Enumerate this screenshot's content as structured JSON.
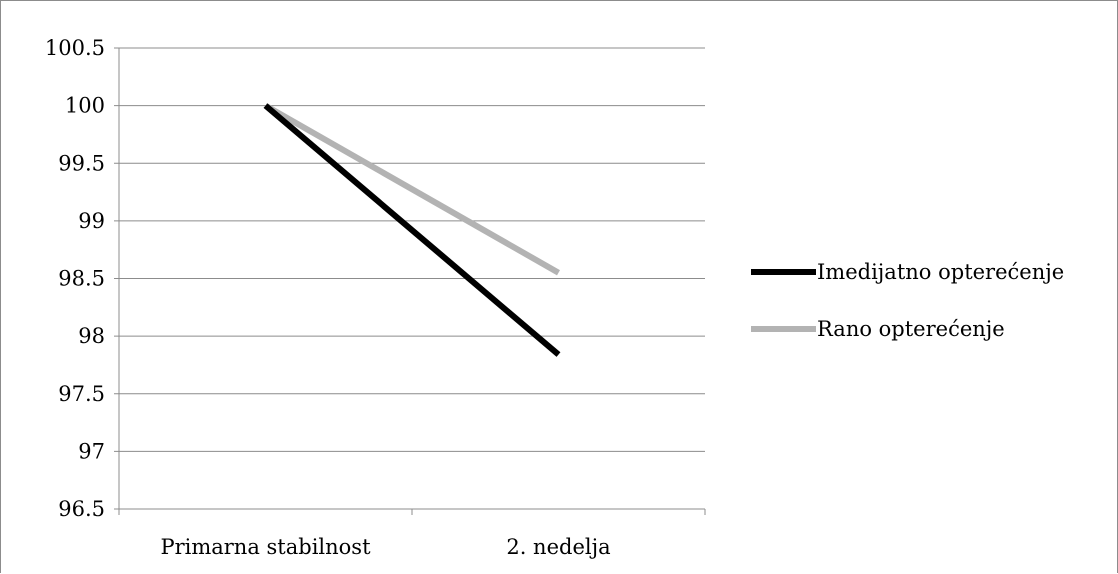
{
  "chart_data": {
    "type": "line",
    "title": "",
    "xlabel": "",
    "ylabel": "",
    "categories": [
      "Primarna stabilnost",
      "2. nedelja"
    ],
    "ylim": [
      96.5,
      100.5
    ],
    "yticks": [
      "96.5",
      "97",
      "97.5",
      "98",
      "98.5",
      "99",
      "99.5",
      "100",
      "100.5"
    ],
    "grid": true,
    "legend_position": "right",
    "series": [
      {
        "name": "Imedijatno opterećenje",
        "values": [
          100,
          97.84
        ],
        "color": "#000000"
      },
      {
        "name": "Rano opterećenje",
        "values": [
          100,
          98.55
        ],
        "color": "#b3b3b3"
      }
    ]
  }
}
